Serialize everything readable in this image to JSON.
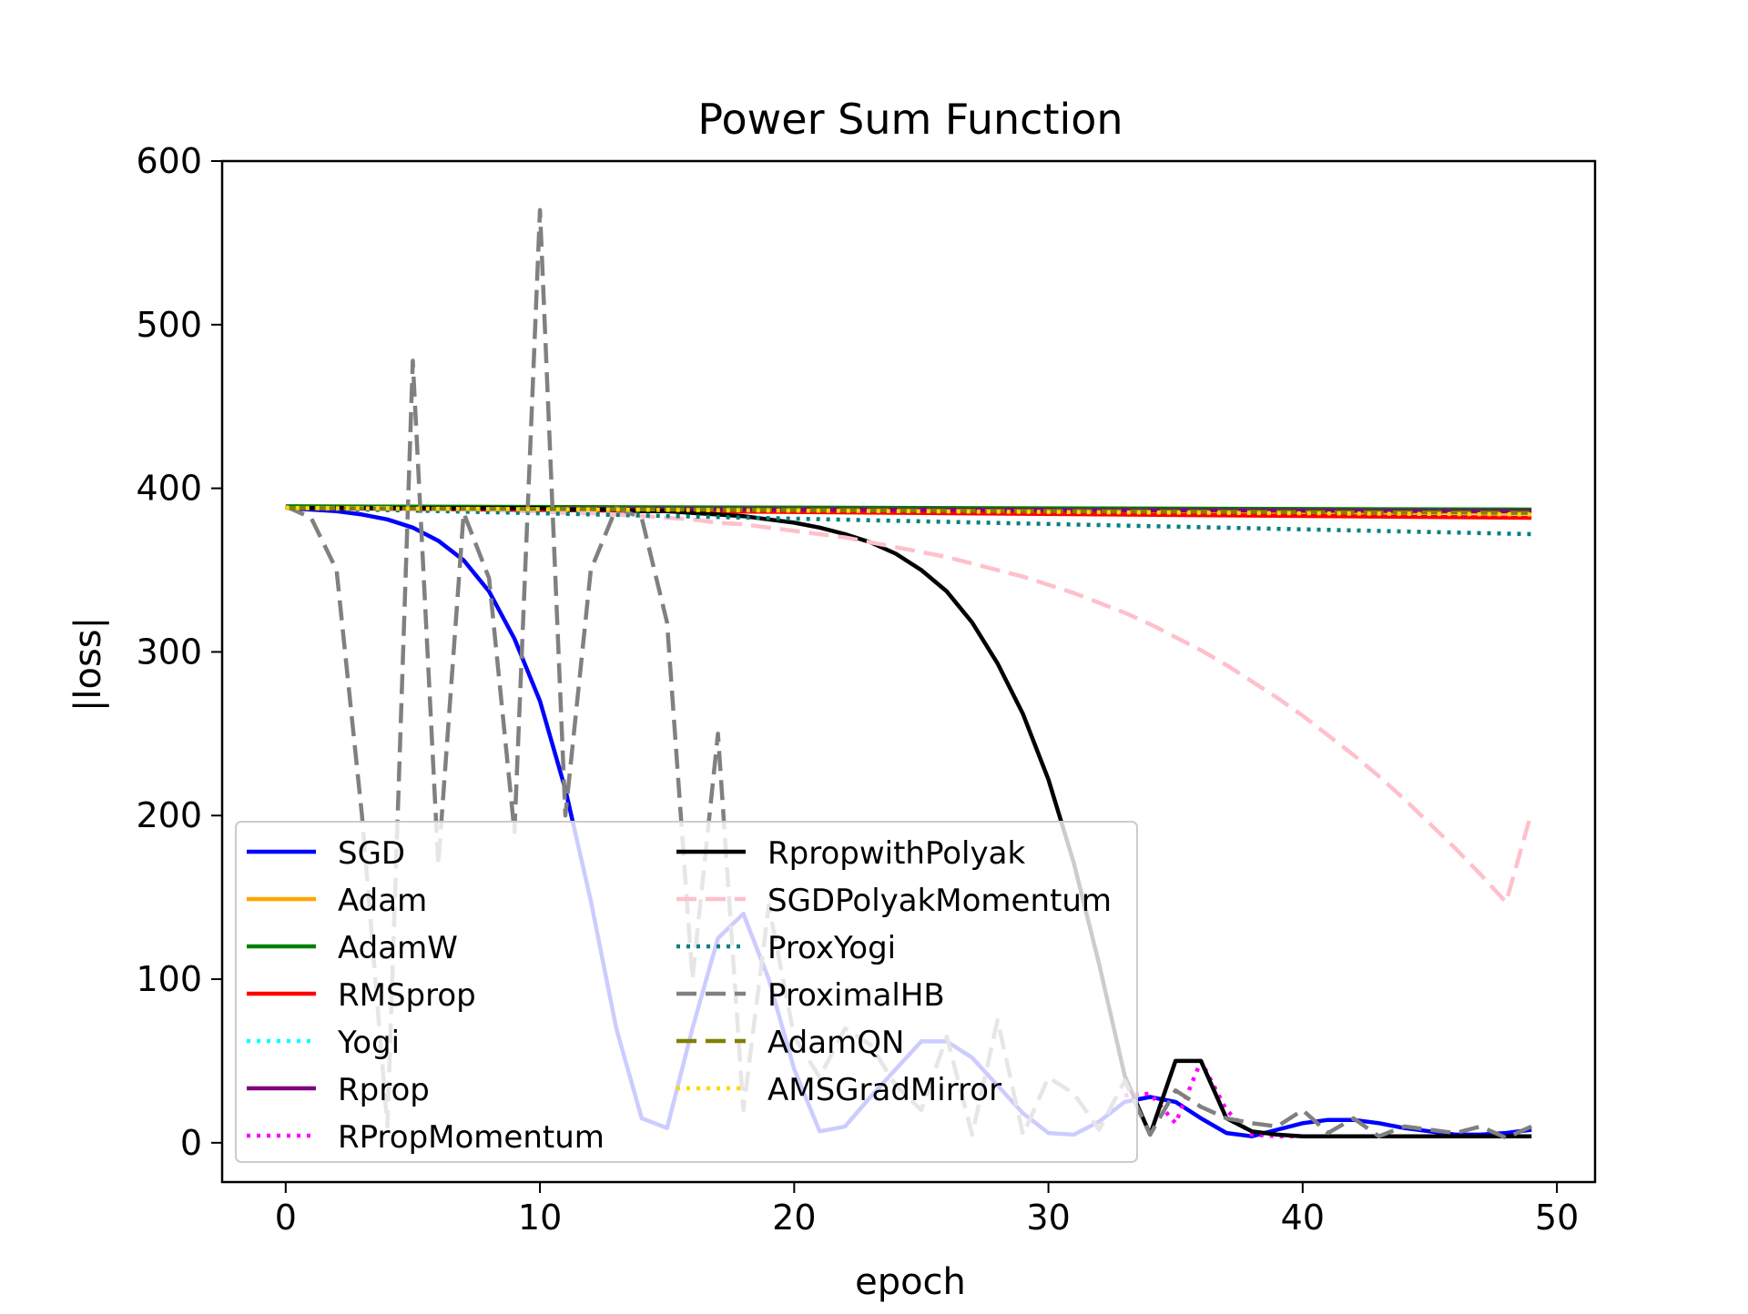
{
  "chart_data": {
    "type": "line",
    "title": "Power Sum Function",
    "xlabel": "epoch",
    "ylabel": "|loss|",
    "xlim": [
      -2.5,
      51.5
    ],
    "ylim": [
      -24,
      600
    ],
    "xticks": [
      0,
      10,
      20,
      30,
      40,
      50
    ],
    "yticks": [
      0,
      100,
      200,
      300,
      400,
      500,
      600
    ],
    "grid": false,
    "legend_position": "lower left",
    "legend_columns": 2,
    "series": [
      {
        "name": "SGD",
        "color": "#0000ff",
        "style": "solid",
        "x": [
          0,
          1,
          2,
          3,
          4,
          5,
          6,
          7,
          8,
          9,
          10,
          11,
          12,
          13,
          14,
          15,
          16,
          17,
          18,
          19,
          20,
          21,
          22,
          23,
          24,
          25,
          26,
          27,
          28,
          29,
          30,
          31,
          32,
          33,
          34,
          35,
          36,
          37,
          38,
          39,
          40,
          41,
          42,
          43,
          44,
          45,
          46,
          47,
          48,
          49
        ],
        "y": [
          388,
          387,
          386,
          384,
          381,
          376,
          368,
          356,
          337,
          308,
          270,
          216,
          148,
          70,
          15,
          9,
          70,
          125,
          140,
          100,
          45,
          7,
          10,
          28,
          45,
          62,
          62,
          52,
          35,
          18,
          6,
          5,
          13,
          25,
          28,
          25,
          15,
          6,
          4,
          8,
          12,
          14,
          14,
          12,
          9,
          7,
          5,
          5,
          6,
          8
        ]
      },
      {
        "name": "Adam",
        "color": "#ffa500",
        "style": "solid",
        "x": [
          0,
          49
        ],
        "y": [
          388,
          385
        ]
      },
      {
        "name": "AdamW",
        "color": "#008000",
        "style": "solid",
        "x": [
          0,
          49
        ],
        "y": [
          389,
          387
        ]
      },
      {
        "name": "RMSprop",
        "color": "#ff0000",
        "style": "solid",
        "x": [
          0,
          49
        ],
        "y": [
          388,
          382
        ]
      },
      {
        "name": "Yogi",
        "color": "#00ffff",
        "style": "dotted",
        "x": [
          0,
          49
        ],
        "y": [
          388,
          386
        ]
      },
      {
        "name": "Rprop",
        "color": "#800080",
        "style": "solid",
        "x": [
          0,
          49
        ],
        "y": [
          388,
          386
        ]
      },
      {
        "name": "RPropMomentum",
        "color": "#ff00ff",
        "style": "dotted",
        "x": [
          33,
          34,
          35,
          36,
          37,
          38,
          39,
          40,
          41,
          42,
          43,
          44,
          45,
          46,
          47,
          48,
          49
        ],
        "y": [
          29,
          30,
          12,
          50,
          20,
          5,
          4,
          4,
          4,
          4,
          4,
          4,
          4,
          4,
          4,
          4,
          4
        ]
      },
      {
        "name": "RpropwithPolyak",
        "color": "#000000",
        "style": "solid",
        "x": [
          0,
          1,
          2,
          3,
          4,
          5,
          6,
          7,
          8,
          9,
          10,
          11,
          12,
          13,
          14,
          15,
          16,
          17,
          18,
          19,
          20,
          21,
          22,
          23,
          24,
          25,
          26,
          27,
          28,
          29,
          30,
          31,
          32,
          33,
          34,
          35,
          36,
          37,
          38,
          39,
          40,
          41,
          42,
          43,
          44,
          45,
          46,
          47,
          48,
          49
        ],
        "y": [
          388,
          388,
          388,
          388,
          388,
          388,
          388,
          388,
          388,
          388,
          388,
          387,
          387,
          387,
          386,
          386,
          385,
          384,
          383,
          381,
          379,
          376,
          372,
          367,
          360,
          350,
          337,
          318,
          293,
          262,
          222,
          171,
          109,
          41,
          5,
          50,
          50,
          15,
          7,
          5,
          4,
          4,
          4,
          4,
          4,
          4,
          4,
          4,
          4,
          4
        ]
      },
      {
        "name": "SGDPolyakMomentum",
        "color": "#ffc0cb",
        "style": "dashed",
        "x": [
          0,
          1,
          2,
          3,
          4,
          5,
          6,
          7,
          8,
          9,
          10,
          11,
          12,
          13,
          14,
          15,
          16,
          17,
          18,
          19,
          20,
          21,
          22,
          23,
          24,
          25,
          26,
          27,
          28,
          29,
          30,
          31,
          32,
          33,
          34,
          35,
          36,
          37,
          38,
          39,
          40,
          41,
          42,
          43,
          44,
          45,
          46,
          47,
          48,
          49
        ],
        "y": [
          388,
          388,
          388,
          388,
          388,
          387,
          387,
          387,
          387,
          386,
          386,
          385,
          385,
          384,
          383,
          382,
          381,
          379,
          378,
          376,
          374,
          372,
          370,
          367,
          364,
          361,
          358,
          354,
          350,
          346,
          341,
          336,
          330,
          324,
          317,
          309,
          301,
          292,
          282,
          272,
          261,
          249,
          237,
          224,
          210,
          195,
          180,
          164,
          147,
          202
        ]
      },
      {
        "name": "ProxYogi",
        "color": "#008080",
        "style": "dotted",
        "x": [
          0,
          49
        ],
        "y": [
          388,
          372
        ]
      },
      {
        "name": "ProximalHB",
        "color": "#808080",
        "style": "dashed",
        "x": [
          0,
          1,
          2,
          3,
          4,
          5,
          6,
          7,
          8,
          9,
          10,
          11,
          12,
          13,
          14,
          15,
          16,
          17,
          18,
          19,
          20,
          21,
          22,
          23,
          24,
          25,
          26,
          27,
          28,
          29,
          30,
          31,
          32,
          33,
          34,
          35,
          36,
          37,
          38,
          39,
          40,
          41,
          42,
          43,
          44,
          45,
          46,
          47,
          48,
          49
        ],
        "y": [
          389,
          382,
          350,
          200,
          10,
          478,
          170,
          385,
          345,
          190,
          570,
          200,
          350,
          388,
          382,
          318,
          100,
          250,
          20,
          145,
          65,
          40,
          70,
          60,
          35,
          20,
          65,
          5,
          75,
          5,
          40,
          30,
          8,
          38,
          5,
          32,
          22,
          15,
          12,
          10,
          20,
          6,
          15,
          4,
          10,
          8,
          6,
          10,
          3,
          10
        ]
      },
      {
        "name": "AdamQN",
        "color": "#808000",
        "style": "dashed",
        "x": [
          0,
          49
        ],
        "y": [
          388,
          385
        ]
      },
      {
        "name": "AMSGradMirror",
        "color": "#ffd700",
        "style": "dotted",
        "x": [
          0,
          49
        ],
        "y": [
          388,
          384
        ]
      }
    ]
  }
}
